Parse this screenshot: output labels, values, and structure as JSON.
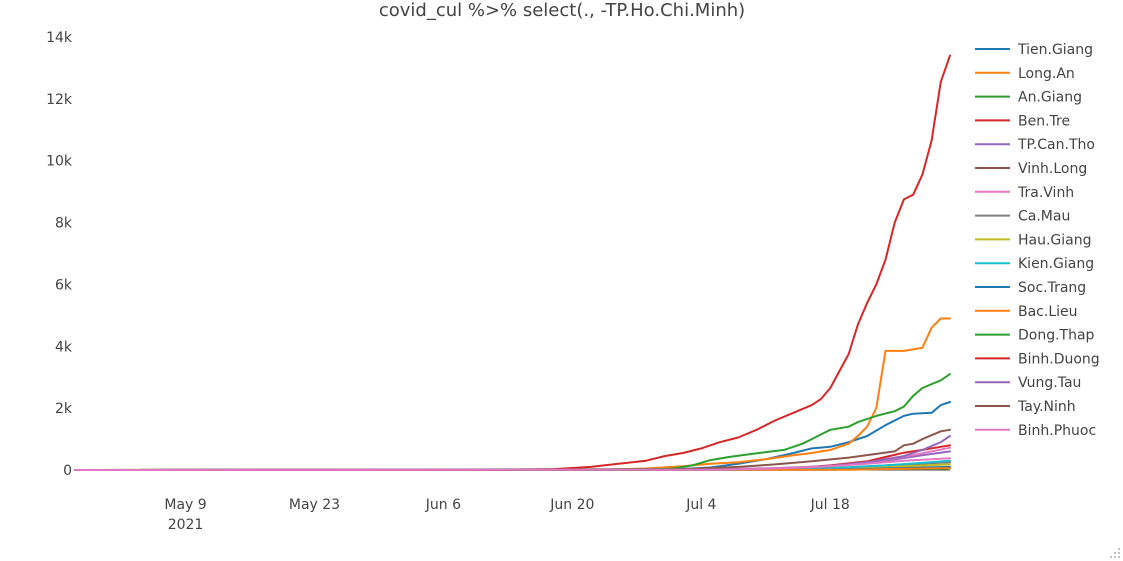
{
  "chart_data": {
    "type": "line",
    "title": "covid_cul %>% select(., -TP.Ho.Chi.Minh)",
    "xlabel": "",
    "ylabel": "",
    "xlim": [
      "2021-04-27",
      "2021-07-31"
    ],
    "ylim": [
      -300,
      14000
    ],
    "x_ticks": [
      {
        "date": "2021-05-09",
        "label": "May 9",
        "sublabel": "2021"
      },
      {
        "date": "2021-05-23",
        "label": "May 23"
      },
      {
        "date": "2021-06-06",
        "label": "Jun 6"
      },
      {
        "date": "2021-06-20",
        "label": "Jun 20"
      },
      {
        "date": "2021-07-04",
        "label": "Jul 4"
      },
      {
        "date": "2021-07-18",
        "label": "Jul 18"
      }
    ],
    "y_ticks": [
      {
        "value": 0,
        "label": "0"
      },
      {
        "value": 2000,
        "label": "2k"
      },
      {
        "value": 4000,
        "label": "4k"
      },
      {
        "value": 6000,
        "label": "6k"
      },
      {
        "value": 8000,
        "label": "8k"
      },
      {
        "value": 10000,
        "label": "10k"
      },
      {
        "value": 12000,
        "label": "12k"
      },
      {
        "value": 14000,
        "label": "14k"
      }
    ],
    "grid": false,
    "legend_position": "right",
    "series": [
      {
        "name": "Tien.Giang",
        "color": "#1f77b4",
        "points": [
          [
            "2021-04-27",
            0
          ],
          [
            "2021-06-25",
            0
          ],
          [
            "2021-07-01",
            20
          ],
          [
            "2021-07-05",
            80
          ],
          [
            "2021-07-08",
            200
          ],
          [
            "2021-07-11",
            350
          ],
          [
            "2021-07-14",
            550
          ],
          [
            "2021-07-16",
            700
          ],
          [
            "2021-07-18",
            750
          ],
          [
            "2021-07-20",
            900
          ],
          [
            "2021-07-22",
            1100
          ],
          [
            "2021-07-24",
            1450
          ],
          [
            "2021-07-26",
            1750
          ],
          [
            "2021-07-27",
            1820
          ],
          [
            "2021-07-29",
            1850
          ],
          [
            "2021-07-30",
            2100
          ],
          [
            "2021-07-31",
            2200
          ]
        ]
      },
      {
        "name": "Long.An",
        "color": "#ff7f0e",
        "points": [
          [
            "2021-04-27",
            0
          ],
          [
            "2021-06-22",
            0
          ],
          [
            "2021-06-28",
            50
          ],
          [
            "2021-07-02",
            120
          ],
          [
            "2021-07-05",
            200
          ],
          [
            "2021-07-08",
            250
          ],
          [
            "2021-07-11",
            350
          ],
          [
            "2021-07-14",
            480
          ],
          [
            "2021-07-16",
            550
          ],
          [
            "2021-07-18",
            650
          ],
          [
            "2021-07-20",
            850
          ],
          [
            "2021-07-21",
            1100
          ],
          [
            "2021-07-22",
            1400
          ],
          [
            "2021-07-23",
            2000
          ],
          [
            "2021-07-24",
            3850
          ],
          [
            "2021-07-26",
            3850
          ],
          [
            "2021-07-27",
            3900
          ],
          [
            "2021-07-28",
            3950
          ],
          [
            "2021-07-29",
            4600
          ],
          [
            "2021-07-30",
            4900
          ],
          [
            "2021-07-31",
            4900
          ]
        ]
      },
      {
        "name": "An.Giang",
        "color": "#2ca02c",
        "points": [
          [
            "2021-04-27",
            0
          ],
          [
            "2021-07-30",
            40
          ],
          [
            "2021-07-31",
            60
          ]
        ]
      },
      {
        "name": "Ben.Tre",
        "color": "#d62728",
        "points": [
          [
            "2021-04-27",
            0
          ],
          [
            "2021-07-08",
            10
          ],
          [
            "2021-07-14",
            60
          ],
          [
            "2021-07-18",
            150
          ],
          [
            "2021-07-22",
            280
          ],
          [
            "2021-07-24",
            420
          ],
          [
            "2021-07-26",
            560
          ],
          [
            "2021-07-28",
            650
          ],
          [
            "2021-07-30",
            750
          ],
          [
            "2021-07-31",
            800
          ]
        ]
      },
      {
        "name": "TP.Can.Tho",
        "color": "#9467bd",
        "points": [
          [
            "2021-04-27",
            0
          ],
          [
            "2021-07-10",
            20
          ],
          [
            "2021-07-16",
            80
          ],
          [
            "2021-07-20",
            180
          ],
          [
            "2021-07-24",
            300
          ],
          [
            "2021-07-28",
            480
          ],
          [
            "2021-07-31",
            600
          ]
        ]
      },
      {
        "name": "Vinh.Long",
        "color": "#8c564b",
        "points": [
          [
            "2021-04-27",
            0
          ],
          [
            "2021-07-20",
            30
          ],
          [
            "2021-07-24",
            100
          ],
          [
            "2021-07-28",
            200
          ],
          [
            "2021-07-31",
            260
          ]
        ]
      },
      {
        "name": "Tra.Vinh",
        "color": "#e377c2",
        "points": [
          [
            "2021-04-27",
            0
          ],
          [
            "2021-07-10",
            15
          ],
          [
            "2021-07-16",
            80
          ],
          [
            "2021-07-20",
            180
          ],
          [
            "2021-07-24",
            330
          ],
          [
            "2021-07-27",
            480
          ],
          [
            "2021-07-29",
            600
          ],
          [
            "2021-07-31",
            720
          ]
        ]
      },
      {
        "name": "Ca.Mau",
        "color": "#7f7f7f",
        "points": [
          [
            "2021-04-27",
            0
          ],
          [
            "2021-07-14",
            20
          ],
          [
            "2021-07-20",
            80
          ],
          [
            "2021-07-24",
            150
          ],
          [
            "2021-07-28",
            220
          ],
          [
            "2021-07-31",
            250
          ]
        ]
      },
      {
        "name": "Hau.Giang",
        "color": "#bcbd22",
        "points": [
          [
            "2021-04-27",
            0
          ],
          [
            "2021-07-16",
            20
          ],
          [
            "2021-07-22",
            80
          ],
          [
            "2021-07-26",
            120
          ],
          [
            "2021-07-31",
            180
          ]
        ]
      },
      {
        "name": "Kien.Giang",
        "color": "#17becf",
        "points": [
          [
            "2021-04-27",
            0
          ],
          [
            "2021-07-10",
            10
          ],
          [
            "2021-07-18",
            60
          ],
          [
            "2021-07-24",
            150
          ],
          [
            "2021-07-28",
            230
          ],
          [
            "2021-07-31",
            300
          ]
        ]
      },
      {
        "name": "Soc.Trang",
        "color": "#1f77b4",
        "points": [
          [
            "2021-04-27",
            0
          ],
          [
            "2021-07-18",
            10
          ],
          [
            "2021-07-24",
            50
          ],
          [
            "2021-07-31",
            100
          ]
        ]
      },
      {
        "name": "Bac.Lieu",
        "color": "#ff7f0e",
        "points": [
          [
            "2021-04-27",
            0
          ],
          [
            "2021-07-20",
            10
          ],
          [
            "2021-07-26",
            40
          ],
          [
            "2021-07-31",
            60
          ]
        ]
      },
      {
        "name": "Dong.Thap",
        "color": "#2ca02c",
        "points": [
          [
            "2021-04-27",
            0
          ],
          [
            "2021-06-28",
            0
          ],
          [
            "2021-07-01",
            50
          ],
          [
            "2021-07-03",
            150
          ],
          [
            "2021-07-05",
            320
          ],
          [
            "2021-07-07",
            420
          ],
          [
            "2021-07-09",
            500
          ],
          [
            "2021-07-11",
            580
          ],
          [
            "2021-07-13",
            650
          ],
          [
            "2021-07-15",
            850
          ],
          [
            "2021-07-16",
            1000
          ],
          [
            "2021-07-17",
            1150
          ],
          [
            "2021-07-18",
            1300
          ],
          [
            "2021-07-20",
            1400
          ],
          [
            "2021-07-21",
            1550
          ],
          [
            "2021-07-23",
            1750
          ],
          [
            "2021-07-25",
            1900
          ],
          [
            "2021-07-26",
            2050
          ],
          [
            "2021-07-27",
            2400
          ],
          [
            "2021-07-28",
            2650
          ],
          [
            "2021-07-30",
            2900
          ],
          [
            "2021-07-31",
            3100
          ]
        ]
      },
      {
        "name": "Binh.Duong",
        "color": "#d62728",
        "points": [
          [
            "2021-04-27",
            0
          ],
          [
            "2021-06-12",
            10
          ],
          [
            "2021-06-18",
            30
          ],
          [
            "2021-06-22",
            100
          ],
          [
            "2021-06-25",
            200
          ],
          [
            "2021-06-28",
            300
          ],
          [
            "2021-06-30",
            450
          ],
          [
            "2021-07-02",
            550
          ],
          [
            "2021-07-04",
            700
          ],
          [
            "2021-07-06",
            900
          ],
          [
            "2021-07-08",
            1050
          ],
          [
            "2021-07-10",
            1300
          ],
          [
            "2021-07-12",
            1600
          ],
          [
            "2021-07-14",
            1850
          ],
          [
            "2021-07-16",
            2100
          ],
          [
            "2021-07-17",
            2300
          ],
          [
            "2021-07-18",
            2650
          ],
          [
            "2021-07-19",
            3200
          ],
          [
            "2021-07-20",
            3750
          ],
          [
            "2021-07-21",
            4700
          ],
          [
            "2021-07-22",
            5400
          ],
          [
            "2021-07-23",
            6000
          ],
          [
            "2021-07-24",
            6800
          ],
          [
            "2021-07-25",
            8000
          ],
          [
            "2021-07-26",
            8750
          ],
          [
            "2021-07-27",
            8900
          ],
          [
            "2021-07-28",
            9550
          ],
          [
            "2021-07-29",
            10650
          ],
          [
            "2021-07-30",
            12550
          ],
          [
            "2021-07-31",
            13400
          ]
        ]
      },
      {
        "name": "Vung.Tau",
        "color": "#9467bd",
        "points": [
          [
            "2021-04-27",
            0
          ],
          [
            "2021-07-05",
            20
          ],
          [
            "2021-07-12",
            60
          ],
          [
            "2021-07-18",
            130
          ],
          [
            "2021-07-22",
            250
          ],
          [
            "2021-07-26",
            450
          ],
          [
            "2021-07-28",
            650
          ],
          [
            "2021-07-30",
            900
          ],
          [
            "2021-07-31",
            1100
          ]
        ]
      },
      {
        "name": "Tay.Ninh",
        "color": "#8c564b",
        "points": [
          [
            "2021-04-27",
            0
          ],
          [
            "2021-06-30",
            10
          ],
          [
            "2021-07-04",
            50
          ],
          [
            "2021-07-08",
            100
          ],
          [
            "2021-07-12",
            180
          ],
          [
            "2021-07-16",
            280
          ],
          [
            "2021-07-20",
            400
          ],
          [
            "2021-07-23",
            520
          ],
          [
            "2021-07-25",
            600
          ],
          [
            "2021-07-26",
            800
          ],
          [
            "2021-07-27",
            850
          ],
          [
            "2021-07-28",
            1000
          ],
          [
            "2021-07-30",
            1250
          ],
          [
            "2021-07-31",
            1300
          ]
        ]
      },
      {
        "name": "Binh.Phuoc",
        "color": "#e377c2",
        "points": [
          [
            "2021-04-27",
            0
          ],
          [
            "2021-07-05",
            10
          ],
          [
            "2021-07-12",
            50
          ],
          [
            "2021-07-18",
            120
          ],
          [
            "2021-07-22",
            200
          ],
          [
            "2021-07-26",
            300
          ],
          [
            "2021-07-31",
            380
          ]
        ]
      }
    ]
  }
}
